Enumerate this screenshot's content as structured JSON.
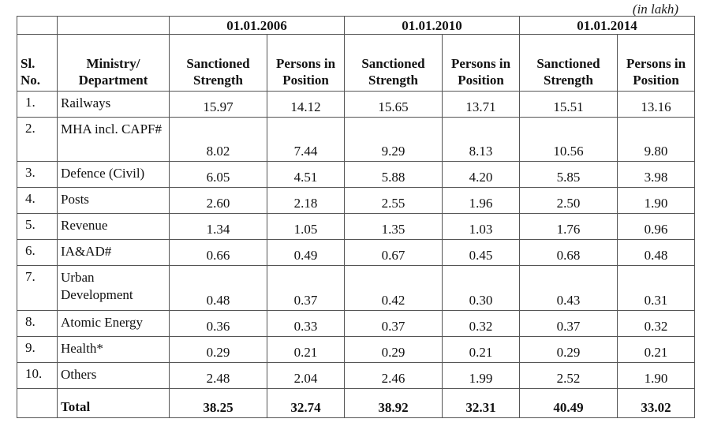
{
  "unit_note": "(in lakh)",
  "headers": {
    "sl": "Sl. No.",
    "ministry": "Ministry/ Department",
    "dates": [
      "01.01.2006",
      "01.01.2010",
      "01.01.2014"
    ],
    "sanctioned": "Sanctioned Strength",
    "persons": "Persons in Position"
  },
  "rows": [
    {
      "sl": "1.",
      "name": "Railways",
      "values": [
        "15.97",
        "14.12",
        "15.65",
        "13.71",
        "15.51",
        "13.16"
      ]
    },
    {
      "sl": "2.",
      "name": "MHA incl. CAPF#",
      "values": [
        "8.02",
        "7.44",
        "9.29",
        "8.13",
        "10.56",
        "9.80"
      ]
    },
    {
      "sl": "3.",
      "name": "Defence (Civil)",
      "values": [
        "6.05",
        "4.51",
        "5.88",
        "4.20",
        "5.85",
        "3.98"
      ]
    },
    {
      "sl": "4.",
      "name": "Posts",
      "values": [
        "2.60",
        "2.18",
        "2.55",
        "1.96",
        "2.50",
        "1.90"
      ]
    },
    {
      "sl": "5.",
      "name": "Revenue",
      "values": [
        "1.34",
        "1.05",
        "1.35",
        "1.03",
        "1.76",
        "0.96"
      ]
    },
    {
      "sl": "6.",
      "name": "IA&AD#",
      "values": [
        "0.66",
        "0.49",
        "0.67",
        "0.45",
        "0.68",
        "0.48"
      ]
    },
    {
      "sl": "7.",
      "name": "Urban Development",
      "values": [
        "0.48",
        "0.37",
        "0.42",
        "0.30",
        "0.43",
        "0.31"
      ]
    },
    {
      "sl": "8.",
      "name": "Atomic Energy",
      "values": [
        "0.36",
        "0.33",
        "0.37",
        "0.32",
        "0.37",
        "0.32"
      ]
    },
    {
      "sl": "9.",
      "name": "Health*",
      "values": [
        "0.29",
        "0.21",
        "0.29",
        "0.21",
        "0.29",
        "0.21"
      ]
    },
    {
      "sl": "10.",
      "name": "Others",
      "values": [
        "2.48",
        "2.04",
        "2.46",
        "1.99",
        "2.52",
        "1.90"
      ]
    }
  ],
  "total": {
    "label": "Total",
    "values": [
      "38.25",
      "32.74",
      "38.92",
      "32.31",
      "40.49",
      "33.02"
    ]
  }
}
